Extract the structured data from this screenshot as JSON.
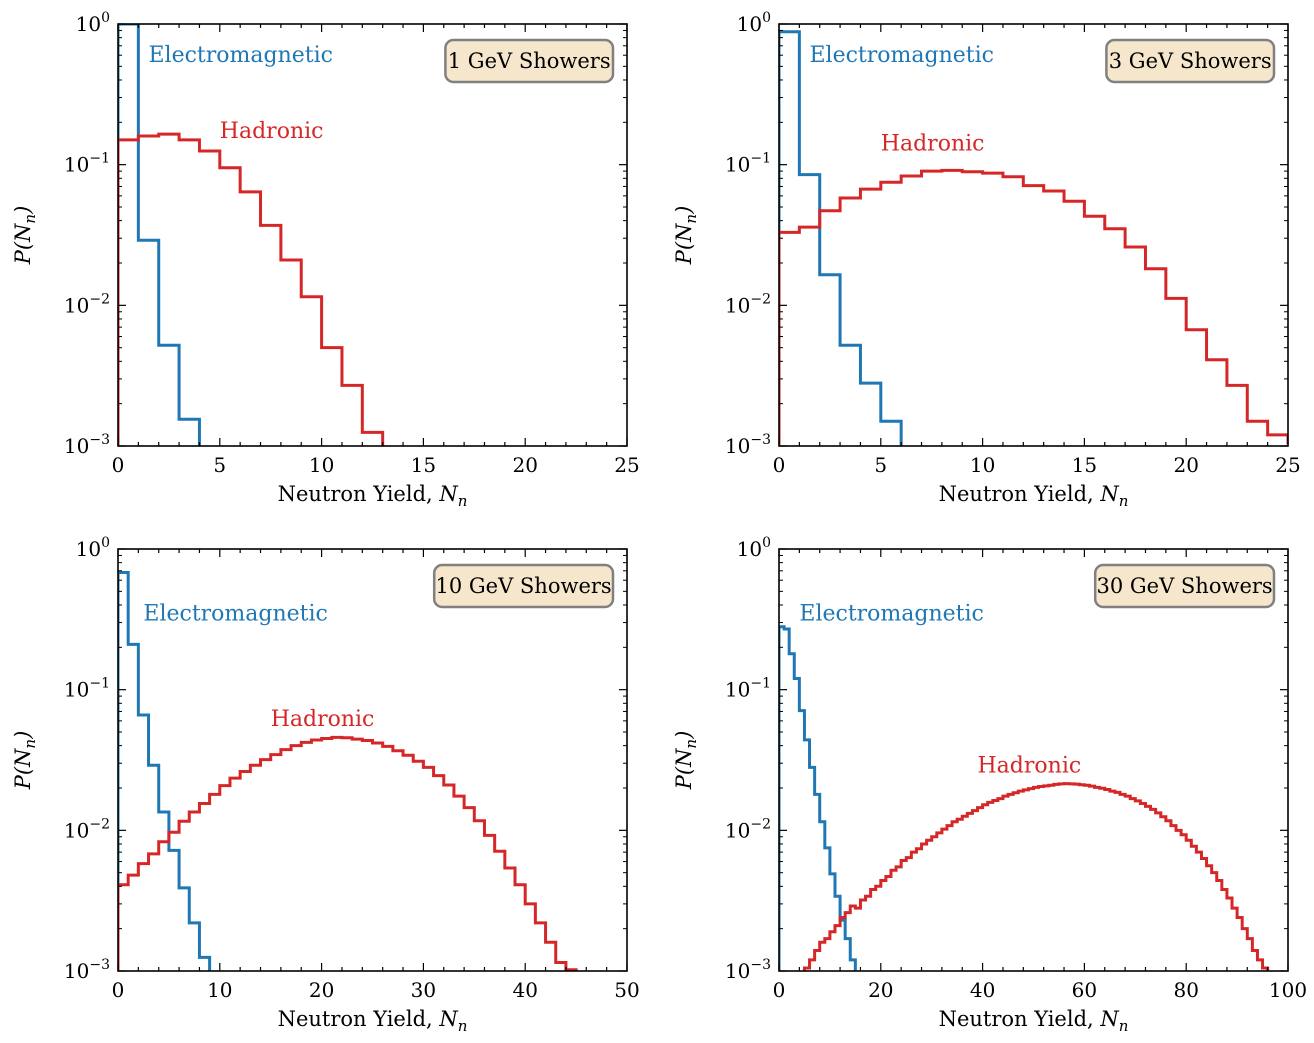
{
  "colors": {
    "electromagnetic": "#1f77b4",
    "hadronic": "#d62728",
    "box_fill": "#f5e6cc",
    "box_edge": "#808080"
  },
  "chart_data": [
    {
      "type": "histogram-step",
      "title": "1 GeV Showers",
      "xlabel_text": "Neutron Yield,",
      "xlabel_symbol": "N",
      "xlabel_sub": "n",
      "ylabel": "P(N_n)",
      "xlim": [
        0,
        25
      ],
      "ylim": [
        0.001,
        1
      ],
      "yscale": "log",
      "xticks": [
        0,
        5,
        10,
        15,
        20,
        25
      ],
      "yticks": [
        {
          "base": "10",
          "exp": "−3"
        },
        {
          "base": "10",
          "exp": "−2"
        },
        {
          "base": "10",
          "exp": "−1"
        },
        {
          "base": "10",
          "exp": "0"
        }
      ],
      "label_corner": "top-right",
      "series": [
        {
          "name": "Electromagnetic",
          "color_key": "electromagnetic",
          "bin_width": 1,
          "x0": 0,
          "values": [
            1.0,
            0.029,
            0.0052,
            0.00155
          ]
        },
        {
          "name": "Hadronic",
          "color_key": "hadronic",
          "bin_width": 1,
          "x0": 0,
          "values": [
            0.15,
            0.16,
            0.165,
            0.15,
            0.125,
            0.095,
            0.064,
            0.037,
            0.021,
            0.0115,
            0.005,
            0.0027,
            0.00125
          ]
        }
      ]
    },
    {
      "type": "histogram-step",
      "title": "3 GeV Showers",
      "xlabel_text": "Neutron Yield,",
      "xlabel_symbol": "N",
      "xlabel_sub": "n",
      "ylabel": "P(N_n)",
      "xlim": [
        0,
        25
      ],
      "ylim": [
        0.001,
        1
      ],
      "yscale": "log",
      "xticks": [
        0,
        5,
        10,
        15,
        20,
        25
      ],
      "yticks": [
        {
          "base": "10",
          "exp": "−3"
        },
        {
          "base": "10",
          "exp": "−2"
        },
        {
          "base": "10",
          "exp": "−1"
        },
        {
          "base": "10",
          "exp": "0"
        }
      ],
      "label_corner": "top-right",
      "series": [
        {
          "name": "Electromagnetic",
          "color_key": "electromagnetic",
          "bin_width": 1,
          "x0": 0,
          "values": [
            0.88,
            0.085,
            0.0165,
            0.0052,
            0.0028,
            0.0015
          ]
        },
        {
          "name": "Hadronic",
          "color_key": "hadronic",
          "bin_width": 1,
          "x0": 0,
          "values": [
            0.033,
            0.036,
            0.047,
            0.058,
            0.067,
            0.075,
            0.083,
            0.09,
            0.091,
            0.089,
            0.087,
            0.082,
            0.071,
            0.065,
            0.055,
            0.043,
            0.035,
            0.026,
            0.0182,
            0.0112,
            0.0067,
            0.0041,
            0.0027,
            0.0015,
            0.0012,
            0.00105,
            0.001
          ]
        }
      ]
    },
    {
      "type": "histogram-step",
      "title": "10 GeV Showers",
      "xlabel_text": "Neutron Yield,",
      "xlabel_symbol": "N",
      "xlabel_sub": "n",
      "ylabel": "P(N_n)",
      "xlim": [
        0,
        50
      ],
      "ylim": [
        0.001,
        1
      ],
      "yscale": "log",
      "xticks": [
        0,
        10,
        20,
        30,
        40,
        50
      ],
      "yticks": [
        {
          "base": "10",
          "exp": "−3"
        },
        {
          "base": "10",
          "exp": "−2"
        },
        {
          "base": "10",
          "exp": "−1"
        },
        {
          "base": "10",
          "exp": "0"
        }
      ],
      "label_corner": "top-right",
      "series": [
        {
          "name": "Electromagnetic",
          "color_key": "electromagnetic",
          "bin_width": 1,
          "x0": 0,
          "values": [
            0.68,
            0.21,
            0.066,
            0.029,
            0.0135,
            0.0072,
            0.0039,
            0.0022,
            0.00125
          ]
        },
        {
          "name": "Hadronic",
          "color_key": "hadronic",
          "bin_width": 1,
          "x0": 0,
          "values": [
            0.0041,
            0.0048,
            0.0058,
            0.0068,
            0.0083,
            0.0097,
            0.0116,
            0.0135,
            0.0155,
            0.018,
            0.0208,
            0.0235,
            0.0262,
            0.029,
            0.0318,
            0.0345,
            0.0375,
            0.04,
            0.0422,
            0.0439,
            0.045,
            0.0458,
            0.0455,
            0.0445,
            0.0435,
            0.0418,
            0.0395,
            0.0368,
            0.0342,
            0.031,
            0.028,
            0.0245,
            0.021,
            0.0175,
            0.0145,
            0.0117,
            0.0092,
            0.0071,
            0.0054,
            0.0041,
            0.003,
            0.0022,
            0.0016,
            0.00115,
            0.00102
          ]
        }
      ]
    },
    {
      "type": "histogram-step",
      "title": "30 GeV Showers",
      "xlabel_text": "Neutron Yield,",
      "xlabel_symbol": "N",
      "xlabel_sub": "n",
      "ylabel": "P(N_n)",
      "xlim": [
        0,
        100
      ],
      "ylim": [
        0.001,
        1
      ],
      "yscale": "log",
      "xticks": [
        0,
        20,
        40,
        60,
        80,
        100
      ],
      "yticks": [
        {
          "base": "10",
          "exp": "−3"
        },
        {
          "base": "10",
          "exp": "−2"
        },
        {
          "base": "10",
          "exp": "−1"
        },
        {
          "base": "10",
          "exp": "0"
        }
      ],
      "label_corner": "top-right",
      "series": [
        {
          "name": "Electromagnetic",
          "color_key": "electromagnetic",
          "bin_width": 1,
          "x0": 0,
          "values": [
            0.28,
            0.27,
            0.18,
            0.12,
            0.071,
            0.044,
            0.028,
            0.018,
            0.0115,
            0.0075,
            0.0049,
            0.0034,
            0.0023,
            0.0017,
            0.0012
          ]
        },
        {
          "name": "Hadronic",
          "color_key": "hadronic",
          "bin_width": 1,
          "x0": 5,
          "values": [
            0.00105,
            0.0012,
            0.0014,
            0.0016,
            0.0017,
            0.0019,
            0.0021,
            0.0024,
            0.0026,
            0.0029,
            0.0028,
            0.0032,
            0.0034,
            0.0038,
            0.004,
            0.0044,
            0.0047,
            0.0052,
            0.0055,
            0.0061,
            0.0064,
            0.007,
            0.0074,
            0.008,
            0.0085,
            0.009,
            0.0096,
            0.0102,
            0.0108,
            0.0115,
            0.012,
            0.0126,
            0.0132,
            0.0138,
            0.0145,
            0.0152,
            0.0158,
            0.0163,
            0.0168,
            0.0175,
            0.018,
            0.0185,
            0.019,
            0.0194,
            0.0198,
            0.0202,
            0.0205,
            0.0207,
            0.0209,
            0.0212,
            0.0214,
            0.0215,
            0.0214,
            0.0213,
            0.0211,
            0.0209,
            0.0206,
            0.0202,
            0.0199,
            0.0195,
            0.019,
            0.0186,
            0.018,
            0.0175,
            0.0168,
            0.0162,
            0.0155,
            0.0148,
            0.0141,
            0.0133,
            0.0125,
            0.0117,
            0.0108,
            0.01,
            0.0093,
            0.0085,
            0.0077,
            0.007,
            0.0063,
            0.0056,
            0.005,
            0.0044,
            0.0038,
            0.0033,
            0.0028,
            0.0024,
            0.002,
            0.0017,
            0.0014,
            0.0012,
            0.00105
          ]
        }
      ]
    }
  ]
}
